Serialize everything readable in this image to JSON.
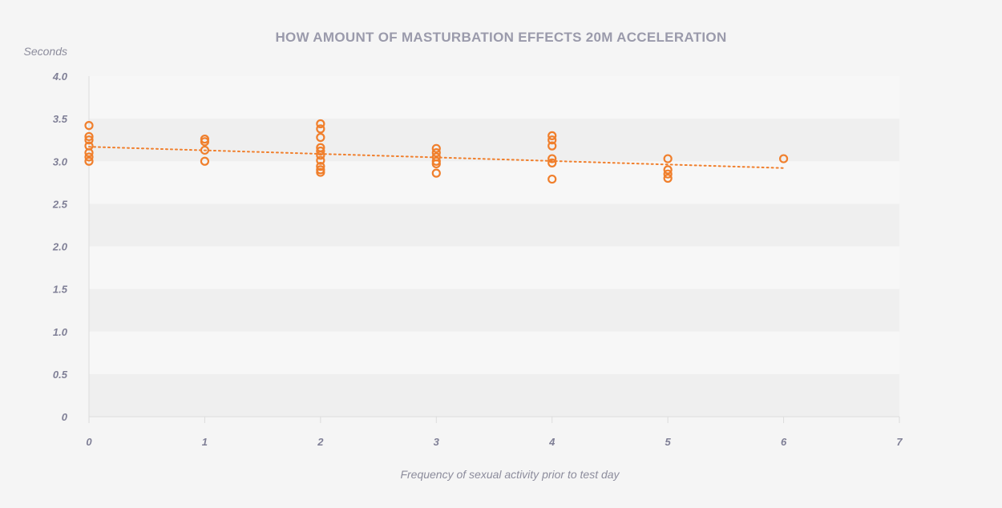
{
  "chart_data": {
    "type": "scatter",
    "title": "HOW AMOUNT OF MASTURBATION EFFECTS 20M ACCELERATION",
    "xlabel": "Frequency of sexual activity prior to test day",
    "ylabel": "Seconds",
    "xlim": [
      0,
      7
    ],
    "ylim": [
      0,
      4.0
    ],
    "x_ticks": [
      "0",
      "1",
      "2",
      "3",
      "4",
      "5",
      "6",
      "7"
    ],
    "y_ticks": [
      "0",
      "0.5",
      "1.0",
      "1.5",
      "2.0",
      "2.5",
      "3.0",
      "3.5",
      "4.0"
    ],
    "grid": "alternating horizontal bands",
    "series": [
      {
        "color": "#f07f2c",
        "points": [
          {
            "x": 0,
            "y": 3.42
          },
          {
            "x": 0,
            "y": 3.29
          },
          {
            "x": 0,
            "y": 3.25
          },
          {
            "x": 0,
            "y": 3.18
          },
          {
            "x": 0,
            "y": 3.1
          },
          {
            "x": 0,
            "y": 3.05
          },
          {
            "x": 0,
            "y": 3.0
          },
          {
            "x": 1,
            "y": 3.26
          },
          {
            "x": 1,
            "y": 3.23
          },
          {
            "x": 1,
            "y": 3.13
          },
          {
            "x": 1,
            "y": 3.0
          },
          {
            "x": 2,
            "y": 3.44
          },
          {
            "x": 2,
            "y": 3.38
          },
          {
            "x": 2,
            "y": 3.28
          },
          {
            "x": 2,
            "y": 3.16
          },
          {
            "x": 2,
            "y": 3.12
          },
          {
            "x": 2,
            "y": 3.07
          },
          {
            "x": 2,
            "y": 3.01
          },
          {
            "x": 2,
            "y": 2.94
          },
          {
            "x": 2,
            "y": 2.9
          },
          {
            "x": 2,
            "y": 2.87
          },
          {
            "x": 3,
            "y": 3.15
          },
          {
            "x": 3,
            "y": 3.1
          },
          {
            "x": 3,
            "y": 3.05
          },
          {
            "x": 3,
            "y": 3.0
          },
          {
            "x": 3,
            "y": 2.97
          },
          {
            "x": 3,
            "y": 2.86
          },
          {
            "x": 4,
            "y": 3.3
          },
          {
            "x": 4,
            "y": 3.25
          },
          {
            "x": 4,
            "y": 3.18
          },
          {
            "x": 4,
            "y": 3.03
          },
          {
            "x": 4,
            "y": 2.98
          },
          {
            "x": 4,
            "y": 2.79
          },
          {
            "x": 5,
            "y": 3.03
          },
          {
            "x": 5,
            "y": 2.9
          },
          {
            "x": 5,
            "y": 2.85
          },
          {
            "x": 5,
            "y": 2.8
          },
          {
            "x": 6,
            "y": 3.03
          }
        ]
      }
    ],
    "trendline": {
      "color": "#f07f2c",
      "style": "dotted",
      "x": [
        0,
        6
      ],
      "y": [
        3.17,
        2.92
      ]
    }
  }
}
